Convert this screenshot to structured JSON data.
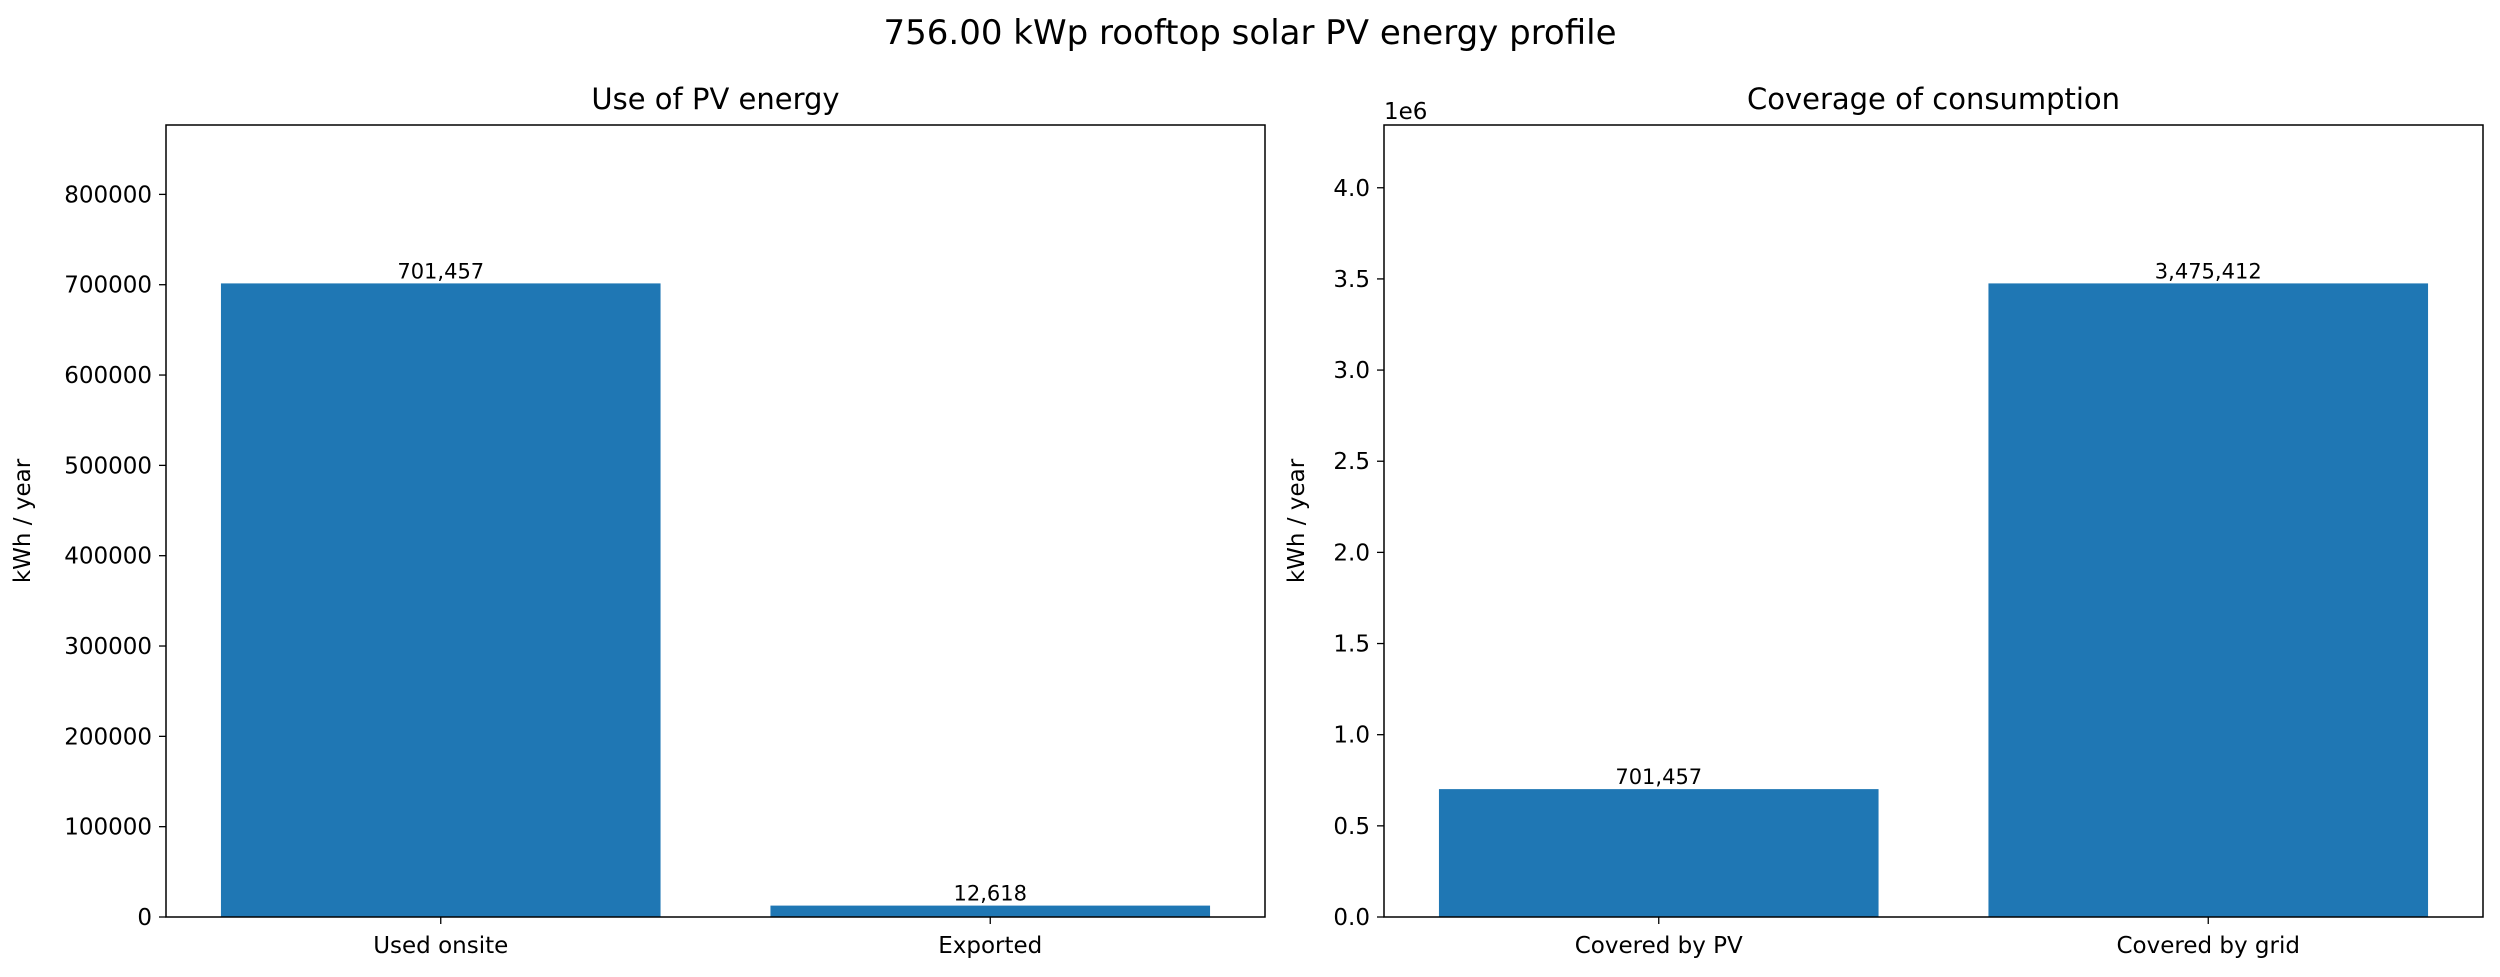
{
  "figure": {
    "title": "756.00 kWp rooftop solar PV energy profile"
  },
  "chart_data": [
    {
      "type": "bar",
      "title": "Use of PV energy",
      "xlabel": "",
      "ylabel": "kWh / year",
      "categories": [
        "Used onsite",
        "Exported"
      ],
      "values": [
        701457,
        12618
      ],
      "value_labels": [
        "701,457",
        "12,618"
      ],
      "ylim": [
        0,
        876821
      ],
      "yticks": [
        0,
        100000,
        200000,
        300000,
        400000,
        500000,
        600000,
        700000,
        800000
      ],
      "ytick_labels": [
        "0",
        "100000",
        "200000",
        "300000",
        "400000",
        "500000",
        "600000",
        "700000",
        "800000"
      ],
      "offset_text": "",
      "bar_color": "#1f77b4",
      "grid": false,
      "legend": "none"
    },
    {
      "type": "bar",
      "title": "Coverage of consumption",
      "xlabel": "",
      "ylabel": "kWh / year",
      "categories": [
        "Covered by PV",
        "Covered by grid"
      ],
      "values": [
        701457,
        3475412
      ],
      "value_labels": [
        "701,457",
        "3,475,412"
      ],
      "ylim": [
        0,
        4344265
      ],
      "yticks": [
        0,
        500000,
        1000000,
        1500000,
        2000000,
        2500000,
        3000000,
        3500000,
        4000000
      ],
      "ytick_labels": [
        "0.0",
        "0.5",
        "1.0",
        "1.5",
        "2.0",
        "2.5",
        "3.0",
        "3.5",
        "4.0"
      ],
      "offset_text": "1e6",
      "bar_color": "#1f77b4",
      "grid": false,
      "legend": "none"
    }
  ]
}
